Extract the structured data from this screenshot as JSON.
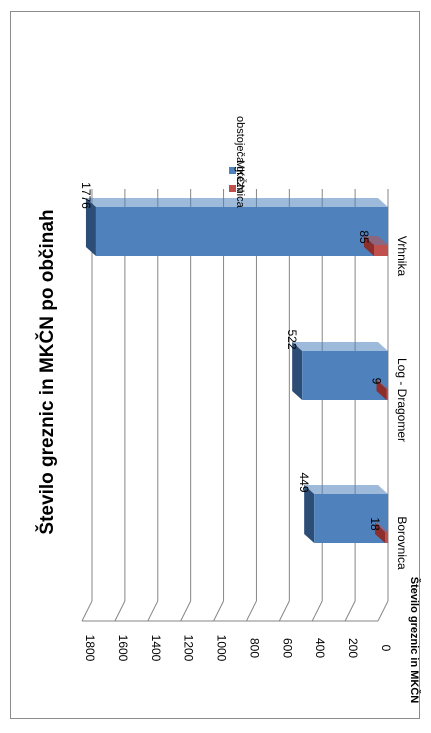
{
  "chart_data": {
    "type": "bar",
    "title": "Število greznic in MKČN po občinah",
    "xlabel": "",
    "ylabel": "Število greznic in MKČN",
    "categories": [
      "Borovnica",
      "Log - Dragomer",
      "Vrhnika"
    ],
    "series": [
      {
        "name": "obstoječa greznica",
        "values": [
          449,
          522,
          1776
        ],
        "color": "#4f81bd",
        "top_color": "#2c4d75"
      },
      {
        "name": "MKČN",
        "values": [
          18,
          9,
          85
        ],
        "color": "#c0504d",
        "top_color": "#8b2e2c"
      }
    ],
    "ylim": [
      0,
      1800
    ],
    "yticks": [
      0,
      200,
      400,
      600,
      800,
      1000,
      1200,
      1400,
      1600,
      1800
    ],
    "grid": true,
    "legend": "right",
    "rotation": "chart rotated 90 degrees counter-clockwise"
  }
}
